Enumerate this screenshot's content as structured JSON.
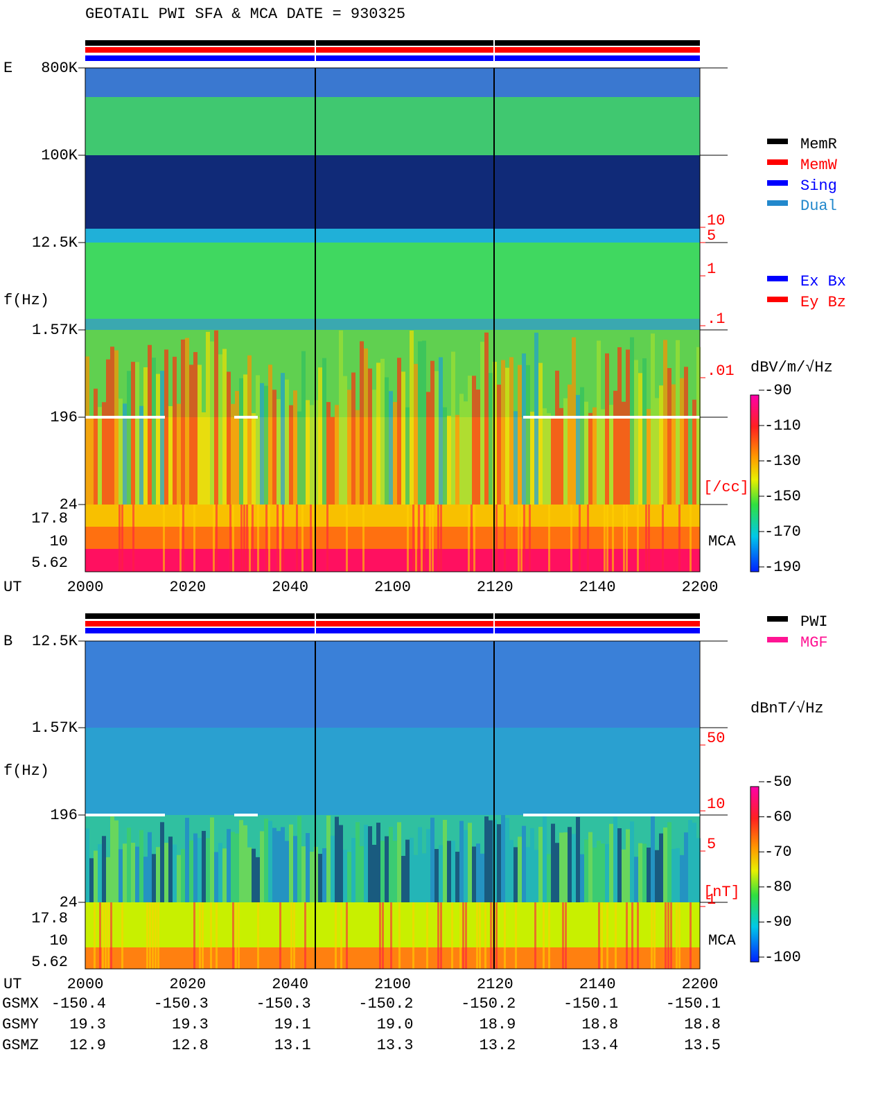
{
  "title": "GEOTAIL  PWI SFA & MCA   DATE = 930325",
  "panels": [
    {
      "label": "E",
      "ylabel": "f(Hz)",
      "yticks": [
        "800K",
        "100K",
        "12.5K",
        "1.57K",
        "196",
        "24"
      ],
      "mca_ticks": [
        "17.8",
        "10",
        "5.62"
      ],
      "x_axis_label": "UT",
      "xticks": [
        "2000",
        "2020",
        "2040",
        "2100",
        "2120",
        "2140",
        "2200"
      ],
      "right_ticks": [
        "10",
        "5",
        "1",
        ".1",
        ".01"
      ],
      "right_unit": "[/cc]",
      "mca_label": "MCA",
      "legend": [
        {
          "label": "MemR",
          "color": "#000000"
        },
        {
          "label": "MemW",
          "color": "#ff0000"
        },
        {
          "label": "Sing",
          "color": "#0000ff"
        },
        {
          "label": "Dual",
          "color": "#2288cc"
        }
      ],
      "legend2": [
        {
          "label": "Ex Bx",
          "color": "#0000ff"
        },
        {
          "label": "Ey Bz",
          "color": "#ff0000"
        }
      ],
      "colorbar": {
        "unit": "dBV/m/√Hz",
        "ticks": [
          "-90",
          "-110",
          "-130",
          "-150",
          "-170",
          "-190"
        ]
      }
    },
    {
      "label": "B",
      "ylabel": "f(Hz)",
      "yticks": [
        "12.5K",
        "1.57K",
        "196",
        "24"
      ],
      "mca_ticks": [
        "17.8",
        "10",
        "5.62"
      ],
      "x_axis_label": "UT",
      "xticks": [
        "2000",
        "2020",
        "2040",
        "2100",
        "2120",
        "2140",
        "2200"
      ],
      "right_ticks": [
        "50",
        "10",
        "5",
        "1"
      ],
      "right_unit": "[nT]",
      "mca_label": "MCA",
      "legend": [
        {
          "label": "PWI",
          "color": "#000000"
        },
        {
          "label": "MGF",
          "color": "#ff1493"
        }
      ],
      "colorbar": {
        "unit": "dBnT/√Hz",
        "ticks": [
          "-50",
          "-60",
          "-70",
          "-80",
          "-90",
          "-100"
        ]
      }
    }
  ],
  "ephemeris": [
    {
      "name": "GSMX",
      "values": [
        "-150.4",
        "-150.3",
        "-150.3",
        "-150.2",
        "-150.2",
        "-150.1",
        "-150.1"
      ]
    },
    {
      "name": "GSMY",
      "values": [
        "19.3",
        "19.3",
        "19.1",
        "19.0",
        "18.9",
        "18.8",
        "18.8"
      ]
    },
    {
      "name": "GSMZ",
      "values": [
        "12.9",
        "12.8",
        "13.1",
        "13.3",
        "13.2",
        "13.4",
        "13.5"
      ]
    }
  ]
}
